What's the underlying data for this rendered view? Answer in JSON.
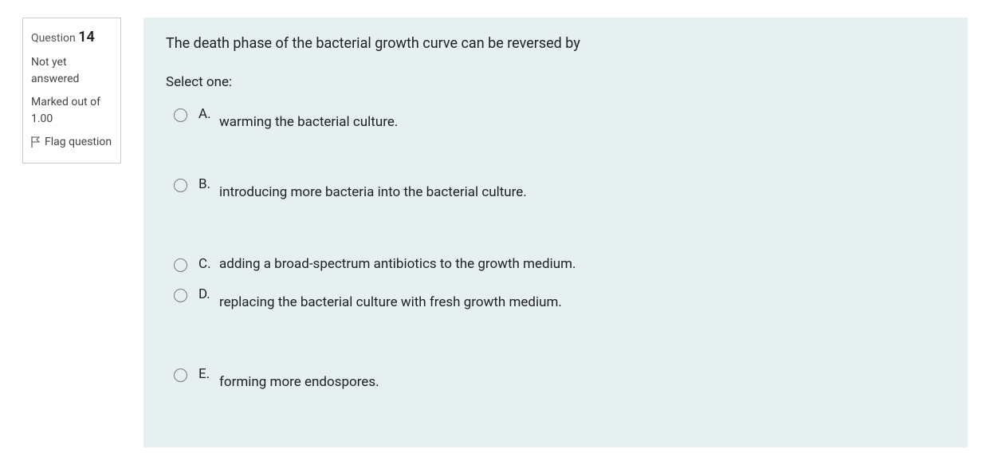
{
  "colors": {
    "panel_bg": "#e6f0f0",
    "border": "#cccccc",
    "text": "#222222",
    "muted": "#555555"
  },
  "info": {
    "question_label": "Question",
    "question_number": "14",
    "status": "Not yet answered",
    "marks_label": "Marked out of",
    "marks_value": "1.00",
    "flag_label": "Flag question"
  },
  "question": {
    "text": "The death phase of the bacterial growth curve can be reversed by",
    "prompt": "Select one:",
    "options": [
      {
        "letter": "A.",
        "text": "warming the bacterial culture.",
        "gap": "large",
        "drop": true
      },
      {
        "letter": "B.",
        "text": "introducing more bacteria into the bacterial culture.",
        "gap": "xl",
        "drop": true
      },
      {
        "letter": "C.",
        "text": "adding a broad-spectrum antibiotics to the growth medium.",
        "gap": "small",
        "drop": false
      },
      {
        "letter": "D.",
        "text": "replacing the bacterial culture with fresh growth medium.",
        "gap": "xl",
        "drop": true
      },
      {
        "letter": "E.",
        "text": "forming more endospores.",
        "gap": "small",
        "drop": true
      }
    ]
  }
}
